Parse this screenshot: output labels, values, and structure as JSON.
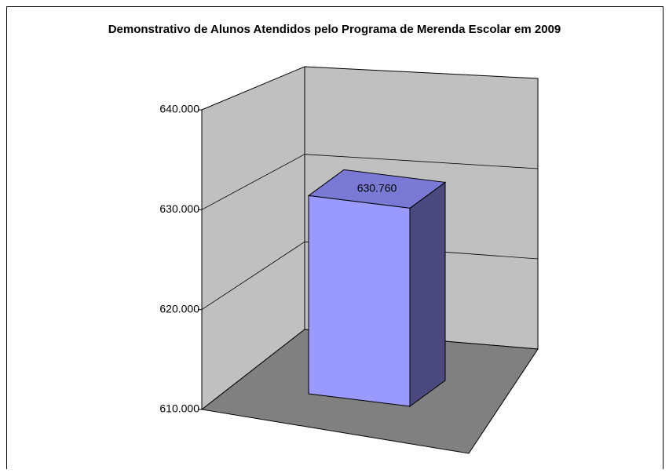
{
  "chart_data": {
    "type": "bar3d",
    "title": "Demonstrativo de Alunos Atendidos pelo Programa de Merenda Escolar em 2009",
    "categories": [
      null
    ],
    "values": [
      630760
    ],
    "value_labels": [
      "630.760"
    ],
    "color": "#9999ff",
    "ylim": [
      610000,
      640000
    ],
    "yticks": [
      {
        "value": 610000,
        "label": "610.000"
      },
      {
        "value": 620000,
        "label": "620.000"
      },
      {
        "value": 630000,
        "label": "630.000"
      },
      {
        "value": 640000,
        "label": "640.000"
      }
    ],
    "grid": true
  }
}
